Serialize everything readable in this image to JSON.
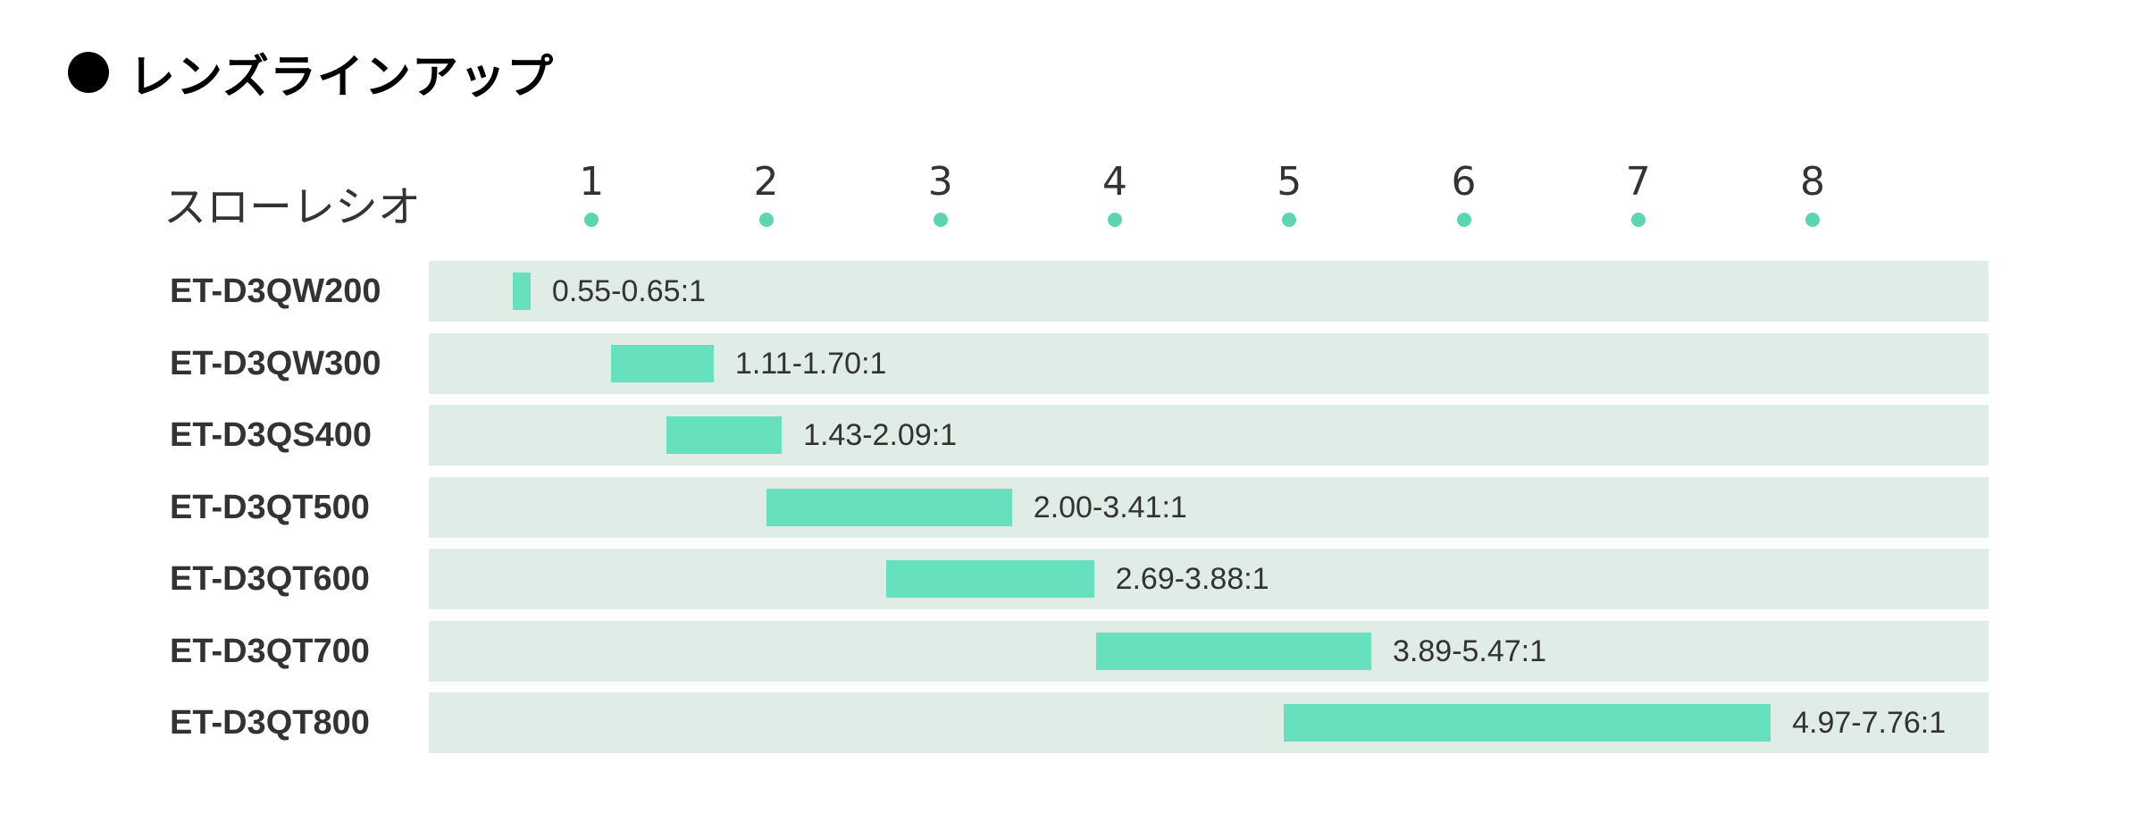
{
  "title": "レンズラインアップ",
  "colors": {
    "bar": "#66e0bd",
    "row_bg": "#e0ece6",
    "tick_dot": "#5ed5b2",
    "bullet": "#000000"
  },
  "chart_data": {
    "type": "bar",
    "orientation": "horizontal",
    "range_bars": true,
    "title": "レンズラインアップ",
    "xlabel": "スローレシオ",
    "ylabel": "",
    "x_ticks": [
      "1",
      "2",
      "3",
      "4",
      "5",
      "6",
      "7",
      "8"
    ],
    "xlim": [
      0,
      9
    ],
    "grid": false,
    "categories": [
      "ET-D3QW200",
      "ET-D3QW300",
      "ET-D3QS400",
      "ET-D3QT500",
      "ET-D3QT600",
      "ET-D3QT700",
      "ET-D3QT800"
    ],
    "ranges": [
      {
        "min": 0.55,
        "max": 0.65,
        "label": "0.55-0.65:1"
      },
      {
        "min": 1.11,
        "max": 1.7,
        "label": "1.11-1.70:1"
      },
      {
        "min": 1.43,
        "max": 2.09,
        "label": "1.43-2.09:1"
      },
      {
        "min": 2.0,
        "max": 3.41,
        "label": "2.00-3.41:1"
      },
      {
        "min": 2.69,
        "max": 3.88,
        "label": "2.69-3.88:1"
      },
      {
        "min": 3.89,
        "max": 5.47,
        "label": "3.89-5.47:1"
      },
      {
        "min": 4.97,
        "max": 7.76,
        "label": "4.97-7.76:1"
      }
    ]
  }
}
